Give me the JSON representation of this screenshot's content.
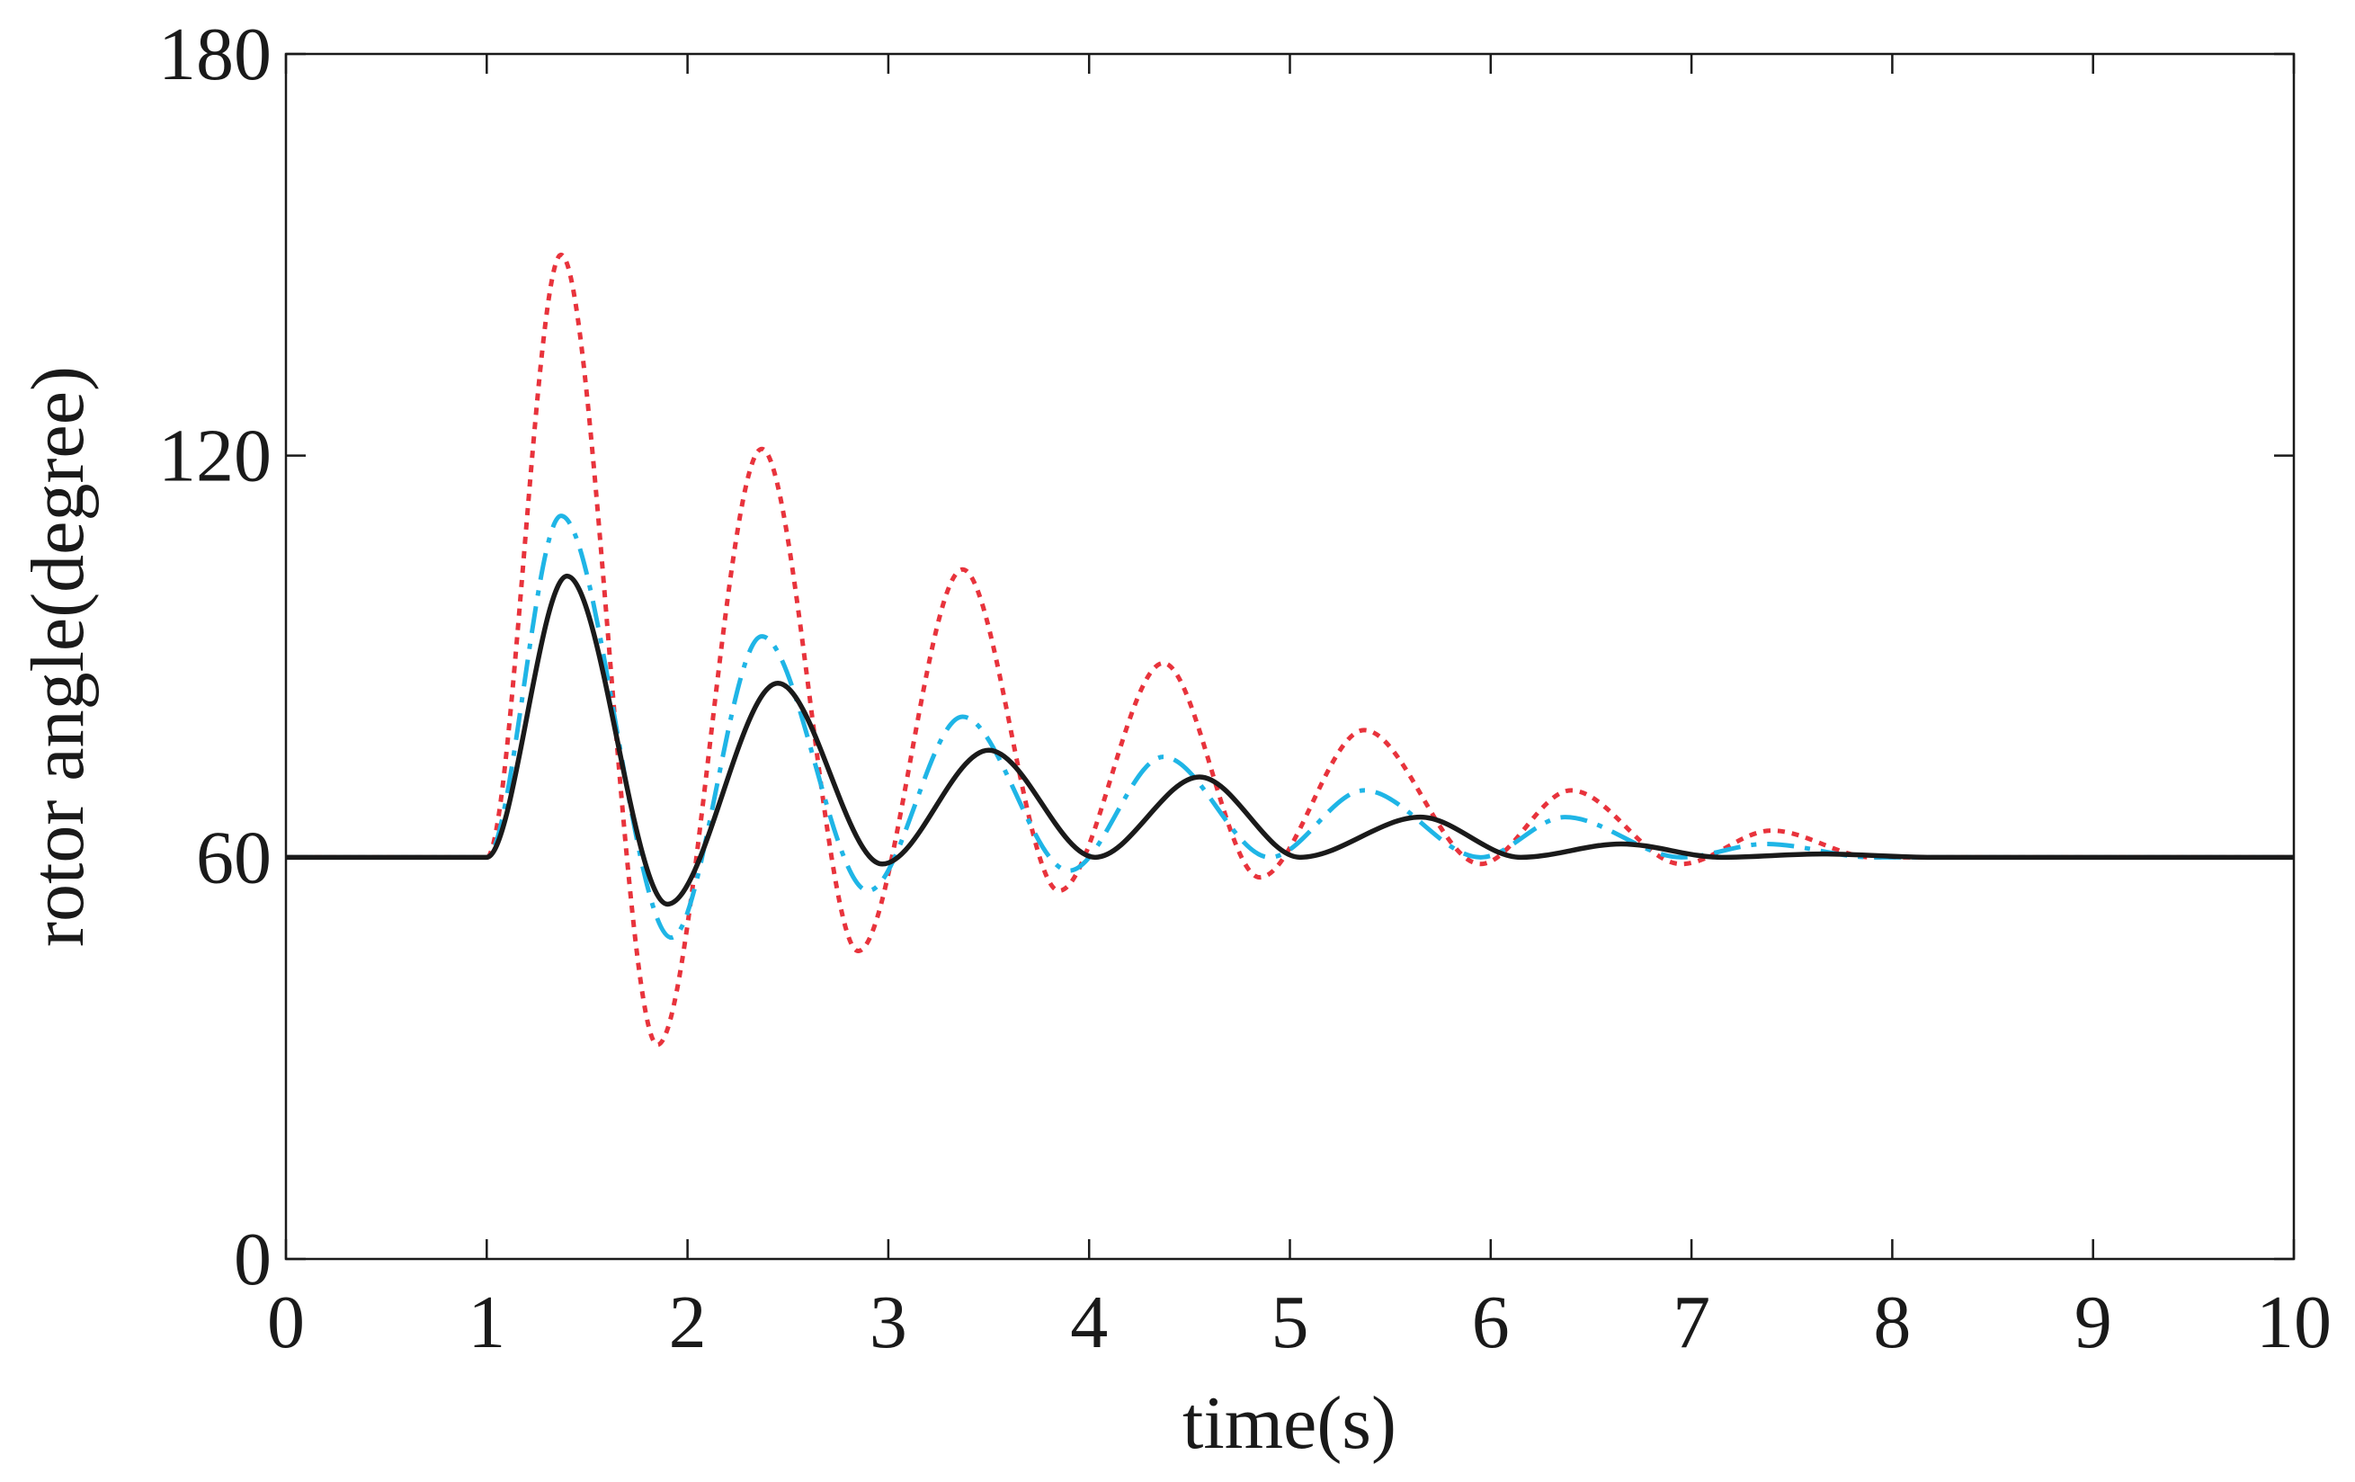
{
  "chart_data": {
    "type": "line",
    "title": "",
    "xlabel": "time(s)",
    "ylabel": "rotor angle(degree)",
    "xlim": [
      0,
      10
    ],
    "ylim": [
      0,
      180
    ],
    "xticks": [
      0,
      1,
      2,
      3,
      4,
      5,
      6,
      7,
      8,
      9,
      10
    ],
    "yticks": [
      0,
      60,
      120,
      180
    ],
    "grid": false,
    "legend": "none",
    "series": [
      {
        "color": "#e8333c",
        "style": "dotted",
        "x": [
          0,
          1.0,
          1.37,
          1.85,
          2.37,
          2.85,
          3.37,
          3.85,
          4.37,
          4.85,
          5.37,
          5.95,
          6.4,
          6.95,
          7.4,
          7.9,
          8.4,
          10
        ],
        "y": [
          60,
          60,
          150,
          32,
          121,
          46,
          103,
          55,
          89,
          57,
          79,
          59,
          70,
          59,
          64,
          60,
          60,
          60
        ]
      },
      {
        "color": "#1fb5e6",
        "style": "dashdot",
        "x": [
          0,
          1.0,
          1.37,
          1.92,
          2.37,
          2.9,
          3.37,
          3.9,
          4.37,
          4.9,
          5.37,
          5.95,
          6.37,
          6.95,
          7.37,
          7.9,
          10
        ],
        "y": [
          60,
          60,
          111,
          48,
          93,
          55,
          81,
          58,
          75,
          60,
          70,
          60,
          66,
          60,
          62,
          60,
          60
        ]
      },
      {
        "color": "#1a1a1a",
        "style": "solid",
        "x": [
          0,
          1.0,
          1.4,
          1.9,
          2.45,
          2.97,
          3.5,
          4.03,
          4.55,
          5.05,
          5.65,
          6.15,
          6.65,
          7.15,
          7.65,
          8.2,
          10
        ],
        "y": [
          60,
          60,
          102,
          53,
          86,
          59,
          76,
          60,
          72,
          60,
          66,
          60,
          62,
          60,
          60.5,
          60,
          60
        ]
      }
    ]
  }
}
